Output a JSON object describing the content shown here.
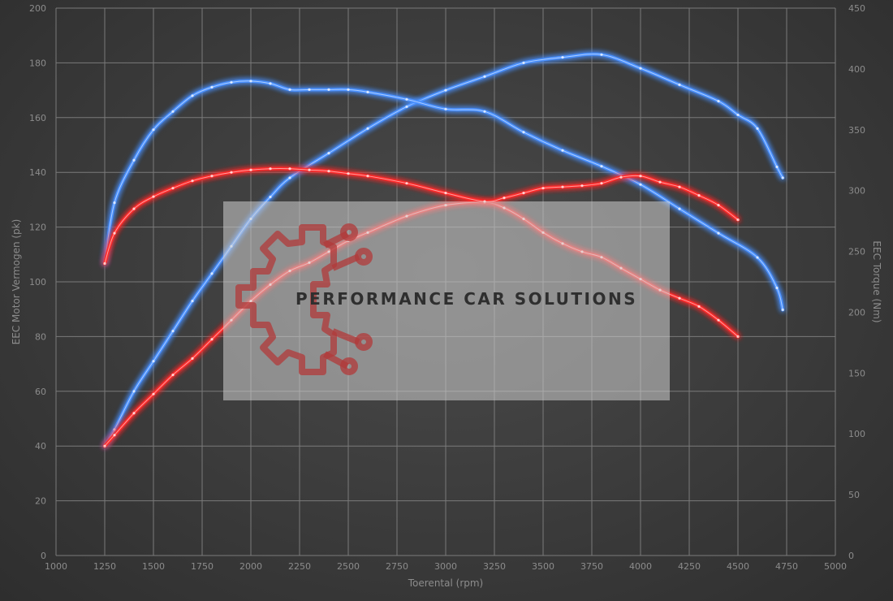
{
  "watermark": {
    "text": "PERFORMANCE CAR SOLUTIONS",
    "logo_color": "#b23a3a"
  },
  "chart_data": {
    "type": "line",
    "xlabel": "Toerental (rpm)",
    "ylabel_left": "EEC Motor Vermogen (pk)",
    "ylabel_right": "EEC Torque (Nm)",
    "xlim": [
      1000,
      5000
    ],
    "ylim_left": [
      0,
      200
    ],
    "ylim_right": [
      0,
      450
    ],
    "x_ticks": [
      "1000",
      "1250",
      "1500",
      "1750",
      "2000",
      "2250",
      "2500",
      "2750",
      "3000",
      "3250",
      "3500",
      "3750",
      "4000",
      "4250",
      "4500",
      "4750",
      "5000"
    ],
    "y_ticks_left": [
      "0",
      "20",
      "40",
      "60",
      "80",
      "100",
      "120",
      "140",
      "160",
      "180",
      "200"
    ],
    "y_ticks_right": [
      "0",
      "50",
      "100",
      "150",
      "200",
      "250",
      "300",
      "350",
      "400",
      "450"
    ],
    "grid": true,
    "series": [
      {
        "axis": "left",
        "color": "#4a90ff",
        "x": [
          1250,
          1300,
          1400,
          1500,
          1600,
          1700,
          1800,
          1900,
          2000,
          2100,
          2200,
          2400,
          2600,
          2800,
          3000,
          3200,
          3400,
          3600,
          3800,
          4000,
          4200,
          4400,
          4500,
          4600,
          4700,
          4730
        ],
        "values": [
          40,
          46,
          60,
          71,
          82,
          93,
          103,
          113,
          123,
          131,
          138,
          147,
          156,
          164,
          170,
          175,
          180,
          182,
          183,
          178,
          172,
          166,
          161,
          156,
          142,
          138
        ]
      },
      {
        "axis": "right",
        "color": "#4a90ff",
        "x": [
          1250,
          1300,
          1400,
          1500,
          1600,
          1700,
          1800,
          1900,
          2000,
          2100,
          2200,
          2300,
          2400,
          2500,
          2600,
          2800,
          3000,
          3200,
          3400,
          3600,
          3800,
          4000,
          4200,
          4400,
          4600,
          4700,
          4730
        ],
        "values": [
          240,
          290,
          325,
          350,
          365,
          378,
          385,
          389,
          390,
          388,
          383,
          383,
          383,
          383,
          381,
          375,
          367,
          365,
          348,
          333,
          320,
          305,
          285,
          265,
          245,
          220,
          202
        ]
      },
      {
        "axis": "left",
        "color": "#ff2b2b",
        "x": [
          1250,
          1300,
          1400,
          1500,
          1600,
          1700,
          1800,
          1900,
          2000,
          2100,
          2200,
          2300,
          2400,
          2500,
          2600,
          2800,
          3000,
          3200,
          3300,
          3400,
          3500,
          3600,
          3700,
          3800,
          3900,
          4000,
          4100,
          4200,
          4300,
          4400,
          4500
        ],
        "values": [
          40,
          44,
          52,
          59,
          66,
          72,
          79,
          86,
          93,
          99,
          104,
          107,
          111,
          115,
          118,
          124,
          128,
          129,
          127,
          123,
          118,
          114,
          111,
          109,
          105,
          101,
          97,
          94,
          91,
          86,
          80
        ]
      },
      {
        "axis": "right",
        "color": "#ff2b2b",
        "x": [
          1250,
          1300,
          1400,
          1500,
          1600,
          1700,
          1800,
          1900,
          2000,
          2100,
          2200,
          2300,
          2400,
          2500,
          2600,
          2800,
          3000,
          3200,
          3300,
          3400,
          3500,
          3600,
          3700,
          3800,
          3900,
          4000,
          4100,
          4200,
          4300,
          4400,
          4500
        ],
        "values": [
          240,
          265,
          285,
          295,
          302,
          308,
          312,
          315,
          317,
          318,
          318,
          317,
          316,
          314,
          312,
          306,
          298,
          291,
          294,
          298,
          302,
          303,
          304,
          306,
          311,
          312,
          307,
          303,
          296,
          288,
          276
        ]
      }
    ]
  }
}
